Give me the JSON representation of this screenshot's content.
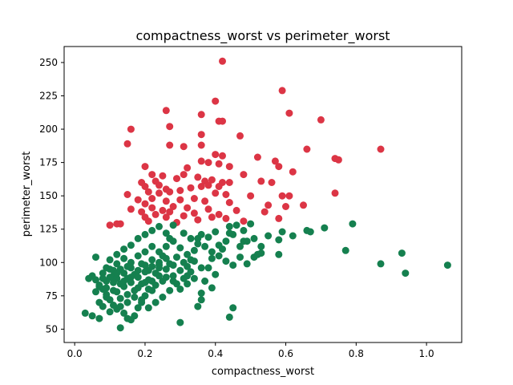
{
  "chart_data": {
    "type": "scatter",
    "title": "compactness_worst vs perimeter_worst",
    "xlabel": "compactness_worst",
    "ylabel": "perimeter_worst",
    "xlim": [
      -0.03,
      1.1
    ],
    "ylim": [
      40,
      262
    ],
    "xticks": [
      "0.0",
      "0.2",
      "0.4",
      "0.6",
      "0.8",
      "1.0"
    ],
    "yticks": [
      "50",
      "75",
      "100",
      "125",
      "150",
      "175",
      "200",
      "225",
      "250"
    ],
    "grid": false,
    "legend": "none",
    "series": [
      {
        "color": "#dc3545",
        "points": [
          [
            0.42,
            251
          ],
          [
            0.59,
            229
          ],
          [
            0.4,
            221
          ],
          [
            0.26,
            214
          ],
          [
            0.61,
            212
          ],
          [
            0.36,
            211
          ],
          [
            0.7,
            207
          ],
          [
            0.42,
            206
          ],
          [
            0.41,
            206
          ],
          [
            0.27,
            202
          ],
          [
            0.16,
            200
          ],
          [
            0.36,
            196
          ],
          [
            0.47,
            195
          ],
          [
            0.36,
            188
          ],
          [
            0.15,
            189
          ],
          [
            0.31,
            187
          ],
          [
            0.27,
            188
          ],
          [
            0.66,
            185
          ],
          [
            0.87,
            185
          ],
          [
            0.4,
            181
          ],
          [
            0.42,
            180
          ],
          [
            0.52,
            179
          ],
          [
            0.74,
            178
          ],
          [
            0.75,
            177
          ],
          [
            0.57,
            176
          ],
          [
            0.36,
            176
          ],
          [
            0.38,
            175
          ],
          [
            0.41,
            174
          ],
          [
            0.44,
            172
          ],
          [
            0.2,
            172
          ],
          [
            0.32,
            171
          ],
          [
            0.58,
            172
          ],
          [
            0.62,
            168
          ],
          [
            0.48,
            166
          ],
          [
            0.22,
            166
          ],
          [
            0.31,
            166
          ],
          [
            0.25,
            165
          ],
          [
            0.29,
            163
          ],
          [
            0.35,
            164
          ],
          [
            0.23,
            161
          ],
          [
            0.19,
            160
          ],
          [
            0.37,
            161
          ],
          [
            0.39,
            162
          ],
          [
            0.42,
            160
          ],
          [
            0.44,
            160
          ],
          [
            0.24,
            158
          ],
          [
            0.53,
            161
          ],
          [
            0.56,
            160
          ],
          [
            0.2,
            157
          ],
          [
            0.26,
            155
          ],
          [
            0.33,
            156
          ],
          [
            0.36,
            157
          ],
          [
            0.38,
            158
          ],
          [
            0.41,
            157
          ],
          [
            0.3,
            154
          ],
          [
            0.21,
            153
          ],
          [
            0.24,
            152
          ],
          [
            0.27,
            153
          ],
          [
            0.4,
            152
          ],
          [
            0.43,
            151
          ],
          [
            0.15,
            151
          ],
          [
            0.5,
            150
          ],
          [
            0.59,
            150
          ],
          [
            0.61,
            150
          ],
          [
            0.74,
            152
          ],
          [
            0.22,
            148
          ],
          [
            0.3,
            147
          ],
          [
            0.34,
            148
          ],
          [
            0.18,
            147
          ],
          [
            0.26,
            146
          ],
          [
            0.37,
            146
          ],
          [
            0.44,
            145
          ],
          [
            0.2,
            144
          ],
          [
            0.28,
            142
          ],
          [
            0.32,
            141
          ],
          [
            0.55,
            143
          ],
          [
            0.6,
            142
          ],
          [
            0.65,
            143
          ],
          [
            0.22,
            141
          ],
          [
            0.16,
            140
          ],
          [
            0.25,
            139
          ],
          [
            0.38,
            140
          ],
          [
            0.46,
            139
          ],
          [
            0.19,
            138
          ],
          [
            0.27,
            138
          ],
          [
            0.34,
            137
          ],
          [
            0.41,
            136
          ],
          [
            0.23,
            136
          ],
          [
            0.31,
            135
          ],
          [
            0.2,
            134
          ],
          [
            0.26,
            134
          ],
          [
            0.39,
            134
          ],
          [
            0.43,
            133
          ],
          [
            0.58,
            133
          ],
          [
            0.48,
            131
          ],
          [
            0.21,
            131
          ],
          [
            0.13,
            129
          ],
          [
            0.12,
            129
          ],
          [
            0.1,
            128
          ],
          [
            0.29,
            130
          ],
          [
            0.35,
            132
          ],
          [
            0.54,
            138
          ]
        ]
      },
      {
        "color": "#15804f",
        "points": [
          [
            1.06,
            98
          ],
          [
            0.94,
            92
          ],
          [
            0.93,
            107
          ],
          [
            0.87,
            99
          ],
          [
            0.79,
            129
          ],
          [
            0.77,
            109
          ],
          [
            0.71,
            126
          ],
          [
            0.67,
            123
          ],
          [
            0.66,
            124
          ],
          [
            0.62,
            120
          ],
          [
            0.59,
            123
          ],
          [
            0.58,
            117
          ],
          [
            0.58,
            106
          ],
          [
            0.55,
            120
          ],
          [
            0.53,
            107
          ],
          [
            0.52,
            106
          ],
          [
            0.51,
            104
          ],
          [
            0.5,
            129
          ],
          [
            0.48,
            116
          ],
          [
            0.48,
            124
          ],
          [
            0.46,
            128
          ],
          [
            0.45,
            121
          ],
          [
            0.44,
            122
          ],
          [
            0.44,
            127
          ],
          [
            0.43,
            116
          ],
          [
            0.42,
            110
          ],
          [
            0.41,
            113
          ],
          [
            0.4,
            123
          ],
          [
            0.39,
            103
          ],
          [
            0.38,
            96
          ],
          [
            0.37,
            86
          ],
          [
            0.36,
            72
          ],
          [
            0.35,
            118
          ],
          [
            0.34,
            109
          ],
          [
            0.33,
            102
          ],
          [
            0.32,
            97
          ],
          [
            0.31,
            88
          ],
          [
            0.3,
            55
          ],
          [
            0.44,
            59
          ],
          [
            0.45,
            66
          ],
          [
            0.49,
            99
          ],
          [
            0.47,
            104
          ],
          [
            0.4,
            91
          ],
          [
            0.36,
            77
          ],
          [
            0.35,
            67
          ],
          [
            0.39,
            81
          ],
          [
            0.28,
            128
          ],
          [
            0.27,
            118
          ],
          [
            0.26,
            112
          ],
          [
            0.25,
            105
          ],
          [
            0.24,
            98
          ],
          [
            0.23,
            92
          ],
          [
            0.22,
            86
          ],
          [
            0.21,
            80
          ],
          [
            0.2,
            75
          ],
          [
            0.19,
            70
          ],
          [
            0.18,
            66
          ],
          [
            0.17,
            60
          ],
          [
            0.16,
            57
          ],
          [
            0.15,
            58
          ],
          [
            0.14,
            62
          ],
          [
            0.13,
            51
          ],
          [
            0.12,
            65
          ],
          [
            0.11,
            68
          ],
          [
            0.1,
            72
          ],
          [
            0.09,
            76
          ],
          [
            0.08,
            80
          ],
          [
            0.07,
            83
          ],
          [
            0.06,
            87
          ],
          [
            0.05,
            90
          ],
          [
            0.04,
            88
          ],
          [
            0.03,
            62
          ],
          [
            0.05,
            60
          ],
          [
            0.07,
            58
          ],
          [
            0.06,
            104
          ],
          [
            0.09,
            96
          ],
          [
            0.1,
            102
          ],
          [
            0.12,
            106
          ],
          [
            0.14,
            110
          ],
          [
            0.16,
            113
          ],
          [
            0.18,
            118
          ],
          [
            0.2,
            121
          ],
          [
            0.22,
            124
          ],
          [
            0.24,
            127
          ],
          [
            0.26,
            122
          ],
          [
            0.28,
            116
          ],
          [
            0.3,
            111
          ],
          [
            0.32,
            106
          ],
          [
            0.34,
            101
          ],
          [
            0.36,
            96
          ],
          [
            0.21,
            94
          ],
          [
            0.19,
            99
          ],
          [
            0.17,
            91
          ],
          [
            0.15,
            88
          ],
          [
            0.13,
            84
          ],
          [
            0.11,
            79
          ],
          [
            0.09,
            74
          ],
          [
            0.07,
            70
          ],
          [
            0.08,
            67
          ],
          [
            0.1,
            63
          ],
          [
            0.12,
            78
          ],
          [
            0.14,
            82
          ],
          [
            0.16,
            85
          ],
          [
            0.18,
            89
          ],
          [
            0.2,
            93
          ],
          [
            0.22,
            97
          ],
          [
            0.24,
            100
          ],
          [
            0.26,
            103
          ],
          [
            0.28,
            98
          ],
          [
            0.3,
            94
          ],
          [
            0.32,
            90
          ],
          [
            0.25,
            86
          ],
          [
            0.23,
            83
          ],
          [
            0.21,
            87
          ],
          [
            0.19,
            84
          ],
          [
            0.17,
            79
          ],
          [
            0.15,
            76
          ],
          [
            0.13,
            73
          ],
          [
            0.11,
            90
          ],
          [
            0.09,
            86
          ],
          [
            0.07,
            82
          ],
          [
            0.06,
            78
          ],
          [
            0.08,
            92
          ],
          [
            0.1,
            95
          ],
          [
            0.12,
            99
          ],
          [
            0.14,
            103
          ],
          [
            0.16,
            96
          ],
          [
            0.18,
            105
          ],
          [
            0.2,
            108
          ],
          [
            0.22,
            112
          ],
          [
            0.24,
            108
          ],
          [
            0.26,
            95
          ],
          [
            0.28,
            90
          ],
          [
            0.29,
            84
          ],
          [
            0.27,
            79
          ],
          [
            0.25,
            74
          ],
          [
            0.23,
            70
          ],
          [
            0.21,
            66
          ],
          [
            0.19,
            72
          ],
          [
            0.17,
            74
          ],
          [
            0.15,
            70
          ],
          [
            0.13,
            67
          ],
          [
            0.11,
            94
          ],
          [
            0.12,
            88
          ],
          [
            0.14,
            92
          ],
          [
            0.16,
            100
          ],
          [
            0.18,
            94
          ],
          [
            0.2,
            98
          ],
          [
            0.22,
            102
          ],
          [
            0.24,
            96
          ],
          [
            0.26,
            89
          ],
          [
            0.28,
            86
          ],
          [
            0.3,
            80
          ],
          [
            0.32,
            84
          ],
          [
            0.34,
            88
          ],
          [
            0.15,
            97
          ],
          [
            0.13,
            95
          ],
          [
            0.11,
            85
          ],
          [
            0.09,
            81
          ],
          [
            0.08,
            88
          ],
          [
            0.1,
            89
          ],
          [
            0.12,
            92
          ],
          [
            0.14,
            86
          ],
          [
            0.16,
            89
          ],
          [
            0.18,
            81
          ],
          [
            0.2,
            85
          ],
          [
            0.22,
            79
          ],
          [
            0.24,
            90
          ],
          [
            0.27,
            99
          ],
          [
            0.29,
            104
          ],
          [
            0.31,
            100
          ],
          [
            0.33,
            93
          ],
          [
            0.35,
            114
          ],
          [
            0.37,
            112
          ],
          [
            0.39,
            108
          ],
          [
            0.41,
            105
          ],
          [
            0.43,
            101
          ],
          [
            0.45,
            98
          ],
          [
            0.47,
            112
          ],
          [
            0.49,
            116
          ],
          [
            0.51,
            118
          ],
          [
            0.53,
            112
          ],
          [
            0.31,
            122
          ],
          [
            0.33,
            118
          ],
          [
            0.36,
            121
          ],
          [
            0.38,
            119
          ]
        ]
      }
    ]
  }
}
